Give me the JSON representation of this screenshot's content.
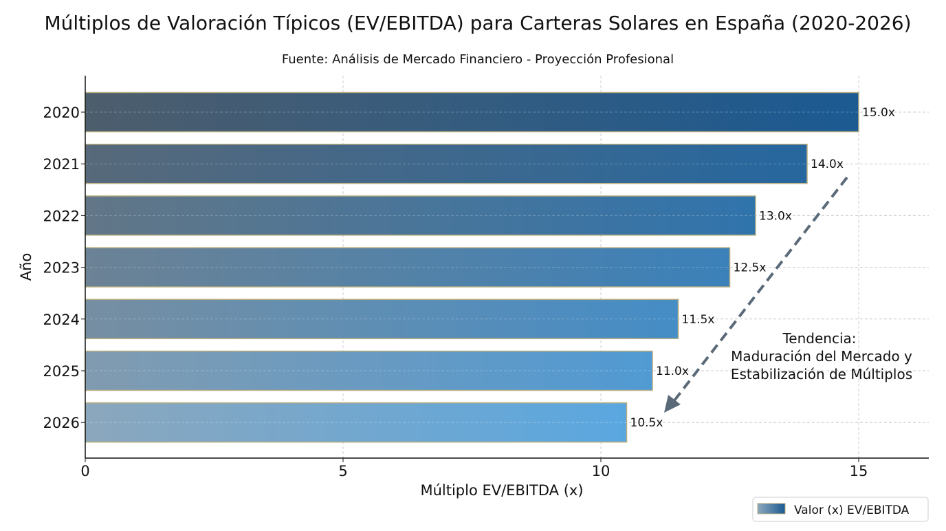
{
  "chart_data": {
    "type": "bar",
    "orientation": "horizontal",
    "title": "Múltiplos de Valoración Típicos (EV/EBITDA) para Carteras Solares en España (2020-2026)",
    "subtitle": "Fuente: Análisis de Mercado Financiero - Proyección Profesional",
    "xlabel": "Múltiplo EV/EBITDA (x)",
    "ylabel": "Año",
    "categories": [
      "2020",
      "2021",
      "2022",
      "2023",
      "2024",
      "2025",
      "2026"
    ],
    "values": [
      15.0,
      14.0,
      13.0,
      12.5,
      11.5,
      11.0,
      10.5
    ],
    "data_labels": [
      "15.0x",
      "14.0x",
      "13.0x",
      "12.5x",
      "11.5x",
      "11.0x",
      "10.5x"
    ],
    "xlim": [
      0,
      16.35
    ],
    "xticks": [
      "0",
      "5",
      "10",
      "15"
    ],
    "grid": true,
    "legend": {
      "placement": "bottom-right",
      "entries": [
        "Valor (x) EV/EBITDA"
      ]
    },
    "annotation": {
      "lines": [
        "Tendencia:",
        "Maduración del Mercado y",
        "Estabilización de Múltiplos"
      ],
      "arrow": "dashed, pointing down-left to 2026"
    },
    "colors": {
      "top_left": "#4d5d6c",
      "top_right": "#1b5a92",
      "bottom_left": "#8ba7bd",
      "bottom_right": "#5aa7e0",
      "arrow": "#5a6a78",
      "bar_edge": "#b8ad80"
    }
  }
}
